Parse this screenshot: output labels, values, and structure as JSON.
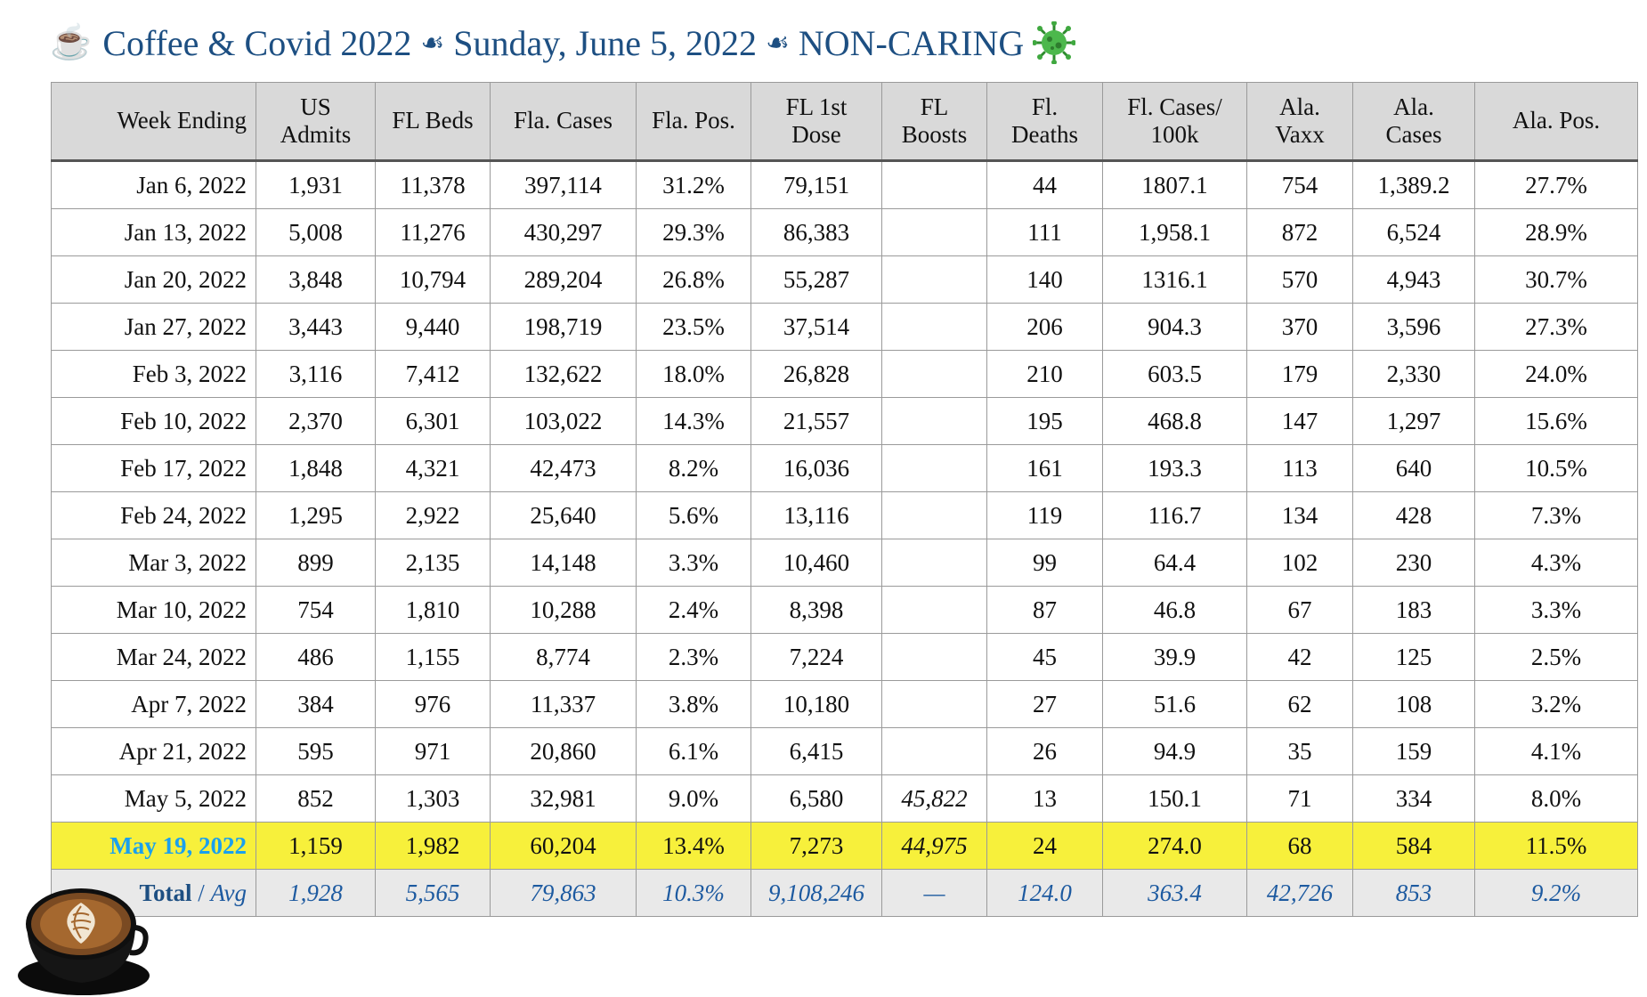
{
  "title": {
    "icon": "coffee-cup-emoji",
    "part1": "Coffee & Covid 2022",
    "separator": "☙",
    "part2": "Sunday, June 5, 2022",
    "part3": "NON-CARING",
    "end_icon": "virus-icon"
  },
  "table": {
    "headers": [
      "Week Ending",
      "US\nAdmits",
      "FL Beds",
      "Fla. Cases",
      "Fla. Pos.",
      "FL 1st\nDose",
      "FL\nBoosts",
      "Fl.\nDeaths",
      "Fl. Cases/\n100k",
      "Ala.\nVaxx",
      "Ala.\nCases",
      "Ala. Pos."
    ],
    "rows": [
      [
        "Jan 6, 2022",
        "1,931",
        "11,378",
        "397,114",
        "31.2%",
        "79,151",
        "",
        "44",
        "1807.1",
        "754",
        "1,389.2",
        "27.7%"
      ],
      [
        "Jan 13, 2022",
        "5,008",
        "11,276",
        "430,297",
        "29.3%",
        "86,383",
        "",
        "111",
        "1,958.1",
        "872",
        "6,524",
        "28.9%"
      ],
      [
        "Jan 20, 2022",
        "3,848",
        "10,794",
        "289,204",
        "26.8%",
        "55,287",
        "",
        "140",
        "1316.1",
        "570",
        "4,943",
        "30.7%"
      ],
      [
        "Jan 27, 2022",
        "3,443",
        "9,440",
        "198,719",
        "23.5%",
        "37,514",
        "",
        "206",
        "904.3",
        "370",
        "3,596",
        "27.3%"
      ],
      [
        "Feb 3, 2022",
        "3,116",
        "7,412",
        "132,622",
        "18.0%",
        "26,828",
        "",
        "210",
        "603.5",
        "179",
        "2,330",
        "24.0%"
      ],
      [
        "Feb 10, 2022",
        "2,370",
        "6,301",
        "103,022",
        "14.3%",
        "21,557",
        "",
        "195",
        "468.8",
        "147",
        "1,297",
        "15.6%"
      ],
      [
        "Feb 17, 2022",
        "1,848",
        "4,321",
        "42,473",
        "8.2%",
        "16,036",
        "",
        "161",
        "193.3",
        "113",
        "640",
        "10.5%"
      ],
      [
        "Feb 24, 2022",
        "1,295",
        "2,922",
        "25,640",
        "5.6%",
        "13,116",
        "",
        "119",
        "116.7",
        "134",
        "428",
        "7.3%"
      ],
      [
        "Mar 3, 2022",
        "899",
        "2,135",
        "14,148",
        "3.3%",
        "10,460",
        "",
        "99",
        "64.4",
        "102",
        "230",
        "4.3%"
      ],
      [
        "Mar 10, 2022",
        "754",
        "1,810",
        "10,288",
        "2.4%",
        "8,398",
        "",
        "87",
        "46.8",
        "67",
        "183",
        "3.3%"
      ],
      [
        "Mar 24, 2022",
        "486",
        "1,155",
        "8,774",
        "2.3%",
        "7,224",
        "",
        "45",
        "39.9",
        "42",
        "125",
        "2.5%"
      ],
      [
        "Apr 7, 2022",
        "384",
        "976",
        "11,337",
        "3.8%",
        "10,180",
        "",
        "27",
        "51.6",
        "62",
        "108",
        "3.2%"
      ],
      [
        "Apr 21, 2022",
        "595",
        "971",
        "20,860",
        "6.1%",
        "6,415",
        "",
        "26",
        "94.9",
        "35",
        "159",
        "4.1%"
      ],
      [
        "May 5, 2022",
        "852",
        "1,303",
        "32,981",
        "9.0%",
        "6,580",
        "45,822",
        "13",
        "150.1",
        "71",
        "334",
        "8.0%"
      ]
    ],
    "highlight_row": [
      "May 19, 2022",
      "1,159",
      "1,982",
      "60,204",
      "13.4%",
      "7,273",
      "44,975",
      "24",
      "274.0",
      "68",
      "584",
      "11.5%"
    ],
    "total_row": {
      "label_bold": "Total",
      "label_sep": " / ",
      "label_italic": "Avg",
      "values": [
        "1,928",
        "5,565",
        "79,863",
        "10.3%",
        "9,108,246",
        "—",
        "124.0",
        "363.4",
        "42,726",
        "853",
        "9.2%"
      ]
    }
  },
  "colors": {
    "title": "#1d4f82",
    "header_bg": "#d9d9d9",
    "highlight_bg": "#f7f03b",
    "highlight_date": "#1aa0ee",
    "total_text": "#1d5aa0"
  },
  "decoration": {
    "bottom_left_image": "latte-coffee-cup-image"
  }
}
